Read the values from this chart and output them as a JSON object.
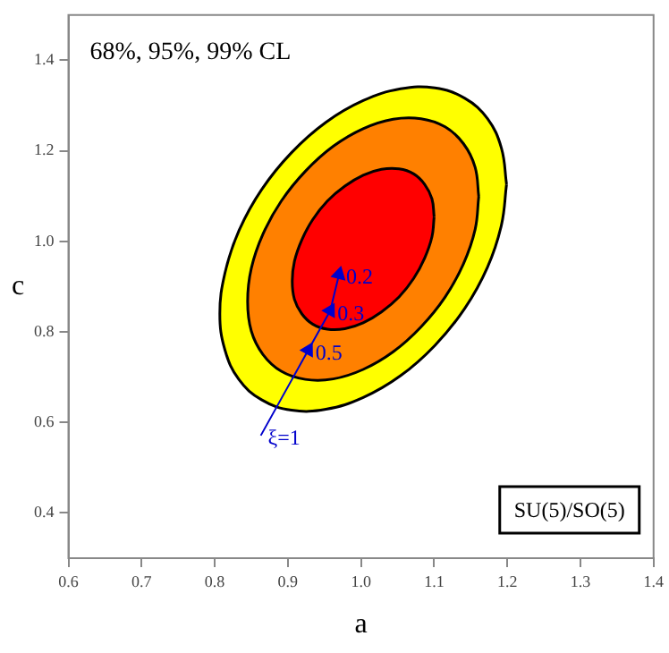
{
  "chart_data": {
    "type": "area",
    "xlabel": "a",
    "ylabel": "c",
    "xlim": [
      0.6,
      1.4
    ],
    "ylim": [
      0.3,
      1.5
    ],
    "xticks": [
      0.6,
      0.7,
      0.8,
      0.9,
      {
        "value": 1,
        "label": "1.0"
      },
      1.1,
      1.2,
      1.3,
      1.4
    ],
    "yticks": [
      0.4,
      0.6,
      0.8,
      {
        "value": 1,
        "label": "1.0"
      },
      1.2,
      1.4
    ],
    "grid": false,
    "legend": false,
    "series": [
      {
        "color": "#ffff00",
        "x": [
          1.199,
          1.192,
          1.173,
          1.142,
          1.101,
          1.054,
          1.003,
          0.952,
          0.905,
          0.864,
          0.833,
          0.814,
          0.807,
          0.814,
          0.833,
          0.864,
          0.905,
          0.952,
          1.003,
          1.054,
          1.101,
          1.142,
          1.173,
          1.192,
          1.199
        ],
        "values": [
          1.126,
          1.206,
          1.271,
          1.316,
          1.339,
          1.337,
          1.311,
          1.263,
          1.196,
          1.114,
          1.023,
          0.93,
          0.84,
          0.76,
          0.695,
          0.65,
          0.627,
          0.629,
          0.655,
          0.703,
          0.77,
          0.852,
          0.943,
          1.036,
          1.126
        ]
      },
      {
        "color": "#ff8000",
        "x": [
          1.161,
          1.156,
          1.14,
          1.115,
          1.082,
          1.044,
          1.003,
          0.962,
          0.924,
          0.891,
          0.866,
          0.85,
          0.845,
          0.85,
          0.866,
          0.891,
          0.924,
          0.962,
          1.003,
          1.044,
          1.082,
          1.115,
          1.14,
          1.156,
          1.161
        ],
        "values": [
          1.099,
          1.164,
          1.216,
          1.253,
          1.271,
          1.27,
          1.249,
          1.21,
          1.155,
          1.089,
          1.016,
          0.94,
          0.867,
          0.802,
          0.75,
          0.713,
          0.695,
          0.696,
          0.717,
          0.756,
          0.811,
          0.877,
          0.95,
          1.026,
          1.099
        ]
      },
      {
        "color": "#ff0000",
        "x": [
          1.1,
          1.097,
          1.087,
          1.072,
          1.052,
          1.028,
          1.003,
          0.978,
          0.954,
          0.934,
          0.919,
          0.909,
          0.906,
          0.909,
          0.919,
          0.934,
          0.954,
          0.978,
          1.003,
          1.028,
          1.052,
          1.072,
          1.087,
          1.097,
          1.1
        ],
        "values": [
          1.054,
          1.094,
          1.126,
          1.149,
          1.16,
          1.159,
          1.146,
          1.122,
          1.089,
          1.048,
          1.003,
          0.956,
          0.912,
          0.872,
          0.84,
          0.817,
          0.806,
          0.807,
          0.82,
          0.844,
          0.877,
          0.918,
          0.963,
          1.01,
          1.054
        ]
      },
      {
        "type": "line",
        "color": "#0000cc",
        "marker": "triangle",
        "x": [
          0.863,
          0.928,
          0.958,
          0.97
        ],
        "values": [
          0.571,
          0.76,
          0.847,
          0.927
        ]
      }
    ],
    "annotations": [
      "68%, 95%, 99% CL",
      "SU(5)/SO(5)",
      {
        "text": "ξ=1",
        "x": 0.863,
        "y": 0.571
      },
      {
        "text": "0.5",
        "x": 0.928,
        "y": 0.76
      },
      {
        "text": "0.3",
        "x": 0.958,
        "y": 0.847
      },
      {
        "text": "0.2",
        "x": 0.97,
        "y": 0.927
      }
    ]
  }
}
